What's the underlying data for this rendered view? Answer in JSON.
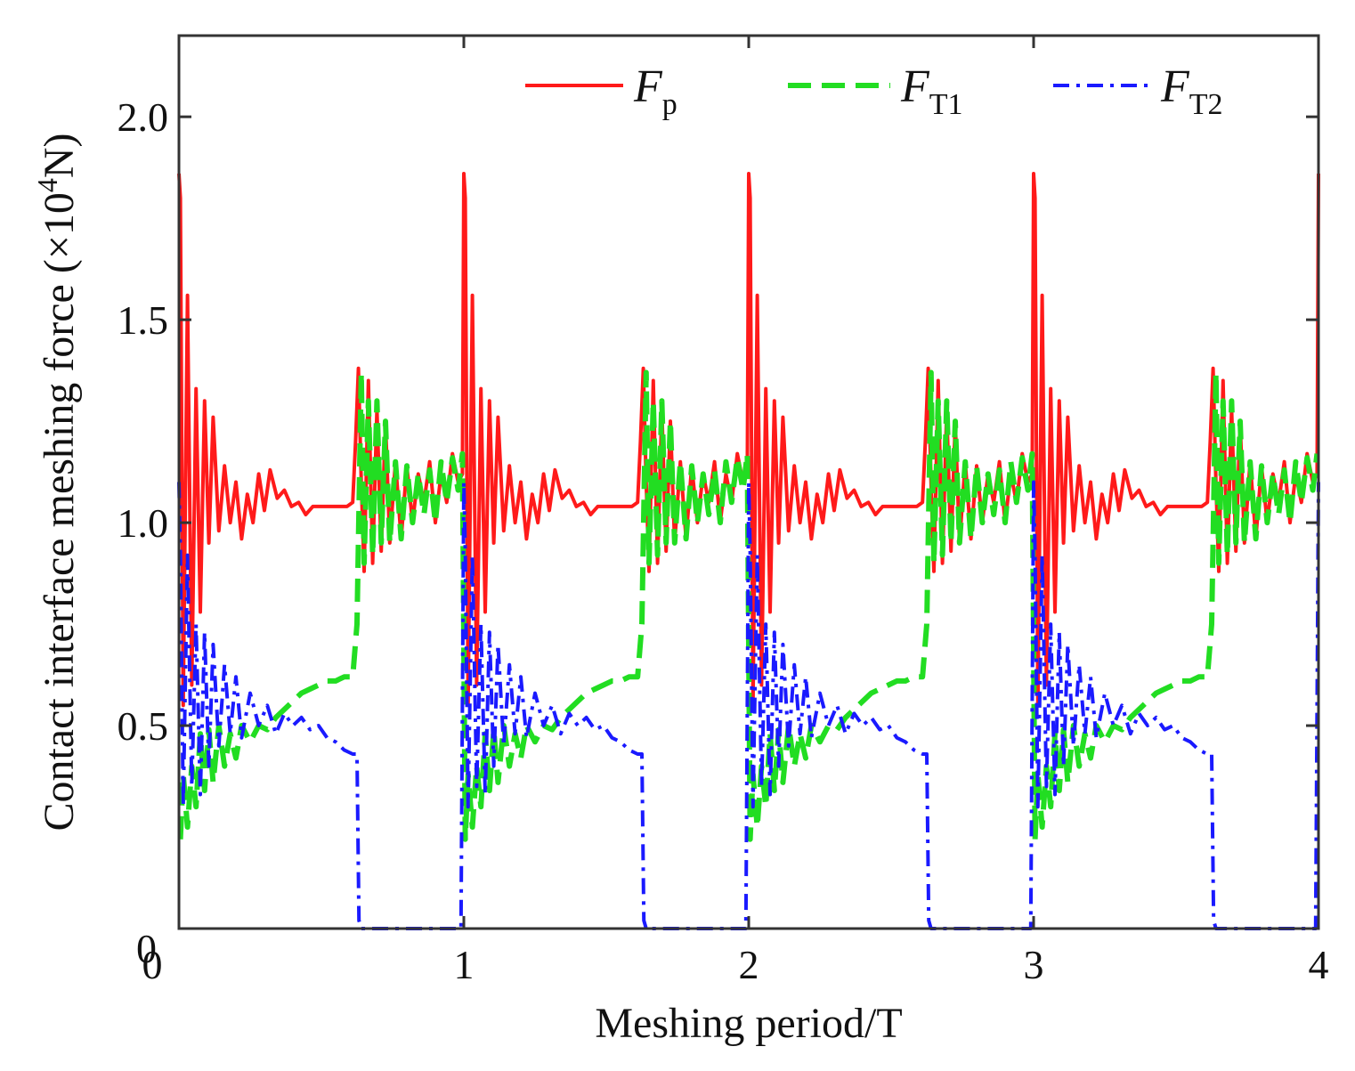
{
  "chart_data": {
    "type": "line",
    "title": "",
    "xlabel": "Meshing period/T",
    "ylabel_main": "Contact interface meshing force (×10",
    "ylabel_exp": "4",
    "ylabel_unit": "N)",
    "xlim": [
      0,
      4
    ],
    "ylim": [
      0,
      2.2
    ],
    "x_ticks": [
      0,
      1,
      2,
      3,
      4
    ],
    "x_tick_labels": [
      "0",
      "1",
      "2",
      "3",
      "4"
    ],
    "y_ticks": [
      0,
      0.5,
      1.0,
      1.5,
      2.0
    ],
    "y_tick_labels": [
      "0",
      "0.5",
      "1.0",
      "1.5",
      "2.0"
    ],
    "grid": false,
    "legend_position": "top",
    "period": 1,
    "series": [
      {
        "name": "Fp",
        "label_main": "F",
        "label_sub": "p",
        "color": "#ff1a1a",
        "style": "solid",
        "x": [
          0.0,
          0.005,
          0.015,
          0.03,
          0.045,
          0.06,
          0.075,
          0.09,
          0.105,
          0.12,
          0.14,
          0.16,
          0.18,
          0.2,
          0.22,
          0.24,
          0.26,
          0.28,
          0.3,
          0.32,
          0.345,
          0.37,
          0.395,
          0.42,
          0.445,
          0.47,
          0.5,
          0.53,
          0.56,
          0.59,
          0.61,
          0.62,
          0.63,
          0.64,
          0.65,
          0.665,
          0.68,
          0.695,
          0.71,
          0.725,
          0.74,
          0.76,
          0.78,
          0.8,
          0.82,
          0.84,
          0.86,
          0.88,
          0.9,
          0.92,
          0.94,
          0.96,
          0.98,
          0.995
        ],
        "y": [
          1.86,
          1.8,
          0.55,
          1.56,
          0.6,
          1.33,
          0.78,
          1.3,
          0.95,
          1.26,
          0.98,
          1.14,
          1.0,
          1.1,
          0.96,
          1.07,
          1.0,
          1.12,
          1.03,
          1.13,
          1.06,
          1.08,
          1.04,
          1.05,
          1.02,
          1.04,
          1.04,
          1.04,
          1.04,
          1.04,
          1.05,
          1.2,
          1.38,
          1.1,
          0.88,
          1.35,
          0.9,
          1.28,
          0.93,
          1.25,
          0.95,
          1.15,
          0.96,
          1.14,
          1.0,
          1.12,
          1.05,
          1.15,
          1.0,
          1.12,
          1.05,
          1.17,
          1.1,
          1.12
        ]
      },
      {
        "name": "FT1",
        "label_main": "F",
        "label_sub": "T1",
        "color": "#22dd22",
        "style": "dashed",
        "x": [
          0.005,
          0.015,
          0.03,
          0.045,
          0.06,
          0.075,
          0.09,
          0.105,
          0.12,
          0.14,
          0.16,
          0.18,
          0.2,
          0.22,
          0.25,
          0.28,
          0.31,
          0.34,
          0.37,
          0.4,
          0.43,
          0.46,
          0.49,
          0.52,
          0.55,
          0.58,
          0.61,
          0.625,
          0.64,
          0.65,
          0.665,
          0.68,
          0.695,
          0.71,
          0.725,
          0.74,
          0.76,
          0.78,
          0.8,
          0.82,
          0.84,
          0.86,
          0.88,
          0.9,
          0.92,
          0.94,
          0.96,
          0.98,
          0.995
        ],
        "y": [
          0.22,
          0.38,
          0.25,
          0.4,
          0.3,
          0.48,
          0.34,
          0.49,
          0.36,
          0.5,
          0.4,
          0.48,
          0.42,
          0.5,
          0.46,
          0.5,
          0.49,
          0.52,
          0.54,
          0.56,
          0.58,
          0.59,
          0.6,
          0.61,
          0.61,
          0.62,
          0.62,
          0.75,
          1.37,
          0.9,
          1.3,
          0.92,
          1.3,
          0.95,
          1.25,
          0.95,
          1.15,
          0.96,
          1.14,
          1.0,
          1.12,
          1.02,
          1.13,
          1.0,
          1.15,
          1.05,
          1.16,
          1.08,
          1.17
        ]
      },
      {
        "name": "FT2",
        "label_main": "F",
        "label_sub": "T2",
        "color": "#1a1aff",
        "style": "dashdot",
        "x": [
          0.0,
          0.005,
          0.015,
          0.03,
          0.045,
          0.06,
          0.075,
          0.09,
          0.105,
          0.12,
          0.14,
          0.16,
          0.18,
          0.2,
          0.22,
          0.25,
          0.28,
          0.31,
          0.34,
          0.37,
          0.4,
          0.43,
          0.46,
          0.49,
          0.52,
          0.55,
          0.58,
          0.61,
          0.625,
          0.632,
          0.64,
          0.7,
          0.8,
          0.9,
          0.99,
          0.9999
        ],
        "y": [
          1.1,
          0.93,
          0.3,
          0.92,
          0.35,
          0.75,
          0.33,
          0.73,
          0.4,
          0.7,
          0.45,
          0.65,
          0.48,
          0.62,
          0.47,
          0.58,
          0.5,
          0.55,
          0.48,
          0.53,
          0.5,
          0.52,
          0.49,
          0.5,
          0.47,
          0.46,
          0.44,
          0.43,
          0.43,
          0.02,
          0.0,
          0.0,
          0.0,
          0.0,
          0.0,
          1.1
        ]
      }
    ]
  }
}
